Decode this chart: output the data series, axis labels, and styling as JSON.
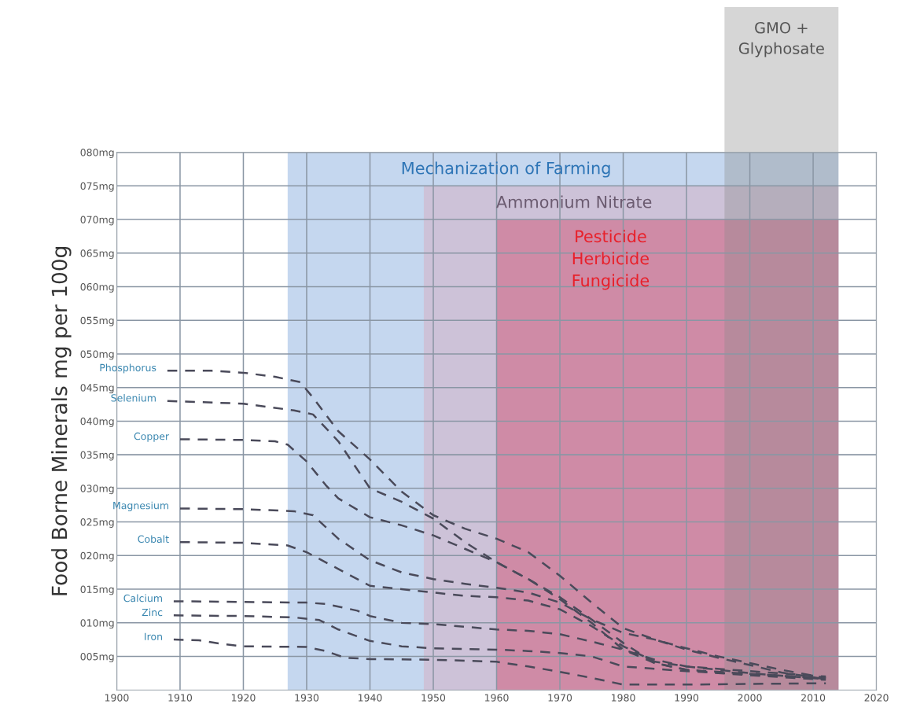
{
  "chart_data": {
    "type": "line",
    "ylabel": "Food Borne Minerals mg per 100g",
    "xlim": [
      1900,
      2020
    ],
    "xticks": [
      1900,
      1910,
      1920,
      1930,
      1940,
      1950,
      1960,
      1970,
      1980,
      1990,
      2000,
      2010,
      2020
    ],
    "ylim": [
      0,
      80
    ],
    "yticks": [
      {
        "value": 5,
        "label": "005mg"
      },
      {
        "value": 10,
        "label": "010mg"
      },
      {
        "value": 15,
        "label": "015mg"
      },
      {
        "value": 20,
        "label": "020mg"
      },
      {
        "value": 25,
        "label": "025mg"
      },
      {
        "value": 30,
        "label": "030mg"
      },
      {
        "value": 35,
        "label": "035mg"
      },
      {
        "value": 40,
        "label": "040mg"
      },
      {
        "value": 45,
        "label": "045mg"
      },
      {
        "value": 50,
        "label": "050mg"
      },
      {
        "value": 55,
        "label": "055mg"
      },
      {
        "value": 60,
        "label": "060mg"
      },
      {
        "value": 65,
        "label": "065mg"
      },
      {
        "value": 70,
        "label": "070mg"
      },
      {
        "value": 75,
        "label": "075mg"
      },
      {
        "value": 80,
        "label": "080mg"
      }
    ],
    "grid": true,
    "line_style": "dashed",
    "legend": false,
    "bands": [
      {
        "axis": "x",
        "from": 1927,
        "to": 2014,
        "label": "Mechanization of Farming",
        "color": "#7ea6dc"
      },
      {
        "axis": "x",
        "from": 1948.5,
        "to": 2014,
        "label": "Ammonium Nitrate",
        "color": "#d6a8bc"
      },
      {
        "axis": "x",
        "from": 1960,
        "to": 2014,
        "label": "Pesticide\nHerbicide\nFungicide",
        "color": "#d24a6a"
      },
      {
        "axis": "x",
        "from": 1996,
        "to": 2014,
        "label": "GMO +\nGlyphosate",
        "color": "#8a8a8a"
      }
    ],
    "series": [
      {
        "name": "Phosphorus",
        "color": "#4a4a5a",
        "x": [
          1908,
          1915,
          1920,
          1925,
          1929,
          1931,
          1935,
          1940,
          1945,
          1950,
          1955,
          1960,
          1965,
          1970,
          1975,
          1980,
          1985,
          1990,
          1995,
          2000,
          2005,
          2012
        ],
        "values": [
          47.5,
          47.5,
          47.2,
          46.6,
          45.8,
          43.5,
          38.5,
          34.3,
          29.5,
          26,
          24,
          22.5,
          20.5,
          17,
          13,
          9.2,
          7.5,
          6,
          4.8,
          3.7,
          2.6,
          1.6
        ]
      },
      {
        "name": "Selenium",
        "color": "#4a4a5a",
        "x": [
          1908,
          1920,
          1928,
          1931,
          1935,
          1940,
          1945,
          1950,
          1955,
          1960,
          1965,
          1970,
          1975,
          1980,
          1985,
          1990,
          1995,
          2000,
          2012
        ],
        "values": [
          43,
          42.6,
          41.6,
          41,
          37,
          30,
          28,
          25.5,
          22,
          19,
          16.5,
          13.5,
          10,
          6,
          4,
          3,
          2.5,
          2.2,
          1.5
        ]
      },
      {
        "name": "Copper",
        "color": "#4a4a5a",
        "x": [
          1910,
          1920,
          1925,
          1927,
          1930,
          1933,
          1935,
          1940,
          1945,
          1950,
          1955,
          1960,
          1965,
          1970,
          1975,
          1980,
          1985,
          1990,
          2000,
          2012
        ],
        "values": [
          37.3,
          37.2,
          37,
          36.5,
          34,
          30.5,
          28.5,
          25.7,
          24.5,
          23,
          21,
          19,
          16.5,
          13.8,
          10.5,
          7,
          4,
          3,
          2.4,
          1.7
        ]
      },
      {
        "name": "Magnesium",
        "color": "#4a4a5a",
        "x": [
          1910,
          1920,
          1928,
          1931,
          1935,
          1940,
          1945,
          1950,
          1955,
          1960,
          1965,
          1970,
          1975,
          1980,
          1985,
          1990,
          1995,
          2000,
          2005,
          2012
        ],
        "values": [
          27,
          26.9,
          26.6,
          26,
          22.5,
          19.3,
          17.5,
          16.5,
          15.8,
          15.2,
          14.5,
          13,
          10.5,
          8.5,
          7.5,
          6.2,
          5,
          4,
          3,
          1.8
        ]
      },
      {
        "name": "Cobalt",
        "color": "#4a4a5a",
        "x": [
          1910,
          1920,
          1927,
          1930,
          1935,
          1940,
          1945,
          1950,
          1955,
          1960,
          1965,
          1970,
          1975,
          1980,
          1985,
          1990,
          2000,
          2012
        ],
        "values": [
          22,
          21.9,
          21.5,
          20.5,
          18,
          15.5,
          15,
          14.5,
          14,
          13.8,
          13.3,
          12,
          9.5,
          6.5,
          4.2,
          3.5,
          2.5,
          1.6
        ]
      },
      {
        "name": "Calcium",
        "color": "#4a4a5a",
        "x": [
          1909,
          1920,
          1930,
          1933,
          1938,
          1940,
          1945,
          1950,
          1960,
          1965,
          1970,
          1975,
          1980,
          1985,
          1990,
          2000,
          2012
        ],
        "values": [
          13.2,
          13.1,
          13,
          12.8,
          11.8,
          11,
          10,
          9.8,
          9,
          8.8,
          8.3,
          7.2,
          6,
          4.5,
          3.5,
          2.8,
          2
        ]
      },
      {
        "name": "Zinc",
        "color": "#4a4a5a",
        "x": [
          1909,
          1920,
          1928,
          1932,
          1935,
          1940,
          1945,
          1950,
          1960,
          1965,
          1970,
          1975,
          1980,
          1990,
          2000,
          2012
        ],
        "values": [
          11.1,
          11,
          10.8,
          10.4,
          9,
          7.3,
          6.5,
          6.2,
          6,
          5.8,
          5.5,
          5,
          3.5,
          2.8,
          2.3,
          1.8
        ]
      },
      {
        "name": "Iron",
        "color": "#4a4a5a",
        "x": [
          1909,
          1913,
          1917,
          1920,
          1930,
          1933,
          1936,
          1940,
          1950,
          1960,
          1965,
          1970,
          1975,
          1980,
          1990,
          2000,
          2012
        ],
        "values": [
          7.5,
          7.4,
          6.8,
          6.5,
          6.4,
          5.8,
          4.8,
          4.6,
          4.5,
          4.2,
          3.5,
          2.7,
          1.8,
          0.8,
          0.8,
          0.9,
          1
        ]
      }
    ]
  }
}
